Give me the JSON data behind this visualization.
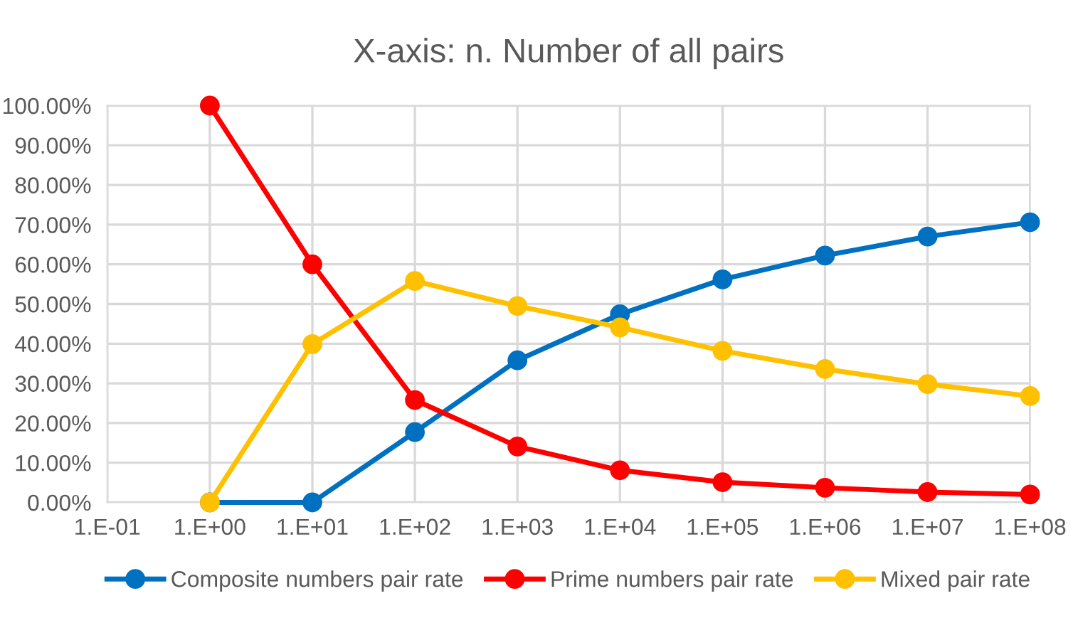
{
  "chart_data": {
    "type": "line",
    "title": "X-axis: n. Number of all pairs",
    "categories": [
      "1.E-01",
      "1.E+00",
      "1.E+01",
      "1.E+02",
      "1.E+03",
      "1.E+04",
      "1.E+05",
      "1.E+06",
      "1.E+07",
      "1.E+08"
    ],
    "series": [
      {
        "name": "Composite numbers pair rate",
        "color": "#0070c0",
        "values": [
          null,
          0,
          0,
          17.7,
          35.8,
          47.4,
          56.2,
          62.2,
          67.0,
          70.6
        ]
      },
      {
        "name": "Prime numbers pair rate",
        "color": "#ff0000",
        "values": [
          null,
          100,
          60,
          25.8,
          14.1,
          8.1,
          5.1,
          3.7,
          2.6,
          2.0
        ]
      },
      {
        "name": "Mixed pair rate",
        "color": "#ffc000",
        "values": [
          null,
          0,
          39.9,
          55.8,
          49.5,
          44.1,
          38.2,
          33.6,
          29.8,
          26.8
        ]
      }
    ],
    "ylim": [
      0,
      100
    ],
    "yticks": [
      {
        "value": 0,
        "label": "0.00%"
      },
      {
        "value": 10,
        "label": "10.00%"
      },
      {
        "value": 20,
        "label": "20.00%"
      },
      {
        "value": 30,
        "label": "30.00%"
      },
      {
        "value": 40,
        "label": "40.00%"
      },
      {
        "value": 50,
        "label": "50.00%"
      },
      {
        "value": 60,
        "label": "60.00%"
      },
      {
        "value": 70,
        "label": "70.00%"
      },
      {
        "value": 80,
        "label": "80.00%"
      },
      {
        "value": 90,
        "label": "90.00%"
      },
      {
        "value": 100,
        "label": "100.00%"
      }
    ],
    "grid": true,
    "legend": "bottom",
    "marker": "circle",
    "line_style": "solid"
  }
}
